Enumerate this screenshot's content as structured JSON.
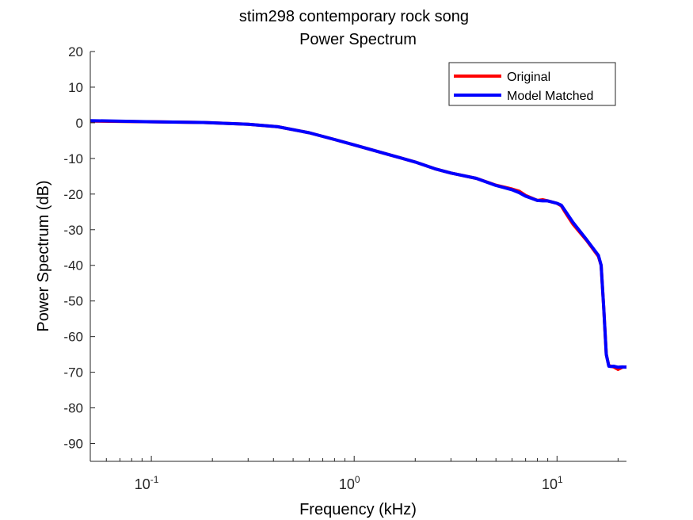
{
  "chart_data": {
    "type": "line",
    "title_line1": "stim298 contemporary rock song",
    "title_line2": "Power Spectrum",
    "xlabel": "Frequency (kHz)",
    "ylabel": "Power Spectrum (dB)",
    "xscale": "log",
    "xlim": [
      0.05,
      22
    ],
    "ylim": [
      -95,
      20
    ],
    "yticks": [
      20,
      10,
      0,
      -10,
      -20,
      -30,
      -40,
      -50,
      -60,
      -70,
      -80,
      -90
    ],
    "xticks": [
      {
        "value": 0.1,
        "base": "10",
        "exp": "-1"
      },
      {
        "value": 1,
        "base": "10",
        "exp": "0"
      },
      {
        "value": 10,
        "base": "10",
        "exp": "1"
      }
    ],
    "legend_position": "top-right",
    "series": [
      {
        "name": "Original",
        "color": "#ff0000",
        "x": [
          0.05,
          0.1,
          0.18,
          0.3,
          0.42,
          0.6,
          0.8,
          1.0,
          1.5,
          2.0,
          2.5,
          3.0,
          4.0,
          5.0,
          6.0,
          6.5,
          7.0,
          8.0,
          8.5,
          9.0,
          10.0,
          10.5,
          11.0,
          12.0,
          14.0,
          16.0,
          16.5,
          17.0,
          17.5,
          18.0,
          18.5,
          19.0,
          20.0,
          21.0,
          22.0
        ],
        "y": [
          0.5,
          0.3,
          0.1,
          -0.4,
          -1.1,
          -2.8,
          -4.7,
          -6.2,
          -9.0,
          -11.0,
          -12.9,
          -14.1,
          -15.6,
          -17.5,
          -18.6,
          -19.2,
          -20.4,
          -21.8,
          -21.6,
          -21.9,
          -22.6,
          -23.3,
          -25.2,
          -28.5,
          -33.0,
          -37.5,
          -40.0,
          -52.0,
          -65.0,
          -68.2,
          -68.3,
          -68.5,
          -69.2,
          -68.6,
          -68.5
        ]
      },
      {
        "name": "Model Matched",
        "color": "#0000ff",
        "x": [
          0.05,
          0.1,
          0.18,
          0.3,
          0.42,
          0.6,
          0.8,
          1.0,
          1.5,
          2.0,
          2.5,
          3.0,
          4.0,
          5.0,
          6.0,
          6.5,
          7.0,
          8.0,
          8.5,
          9.0,
          10.0,
          10.5,
          11.0,
          12.0,
          14.0,
          16.0,
          16.5,
          17.0,
          17.5,
          18.0,
          18.5,
          19.0,
          20.0,
          21.0,
          22.0
        ],
        "y": [
          0.6,
          0.3,
          0.1,
          -0.4,
          -1.1,
          -2.8,
          -4.7,
          -6.2,
          -9.0,
          -11.0,
          -12.9,
          -14.1,
          -15.6,
          -17.6,
          -18.8,
          -19.6,
          -20.6,
          -21.8,
          -21.9,
          -21.9,
          -22.6,
          -23.1,
          -24.8,
          -28.0,
          -32.8,
          -37.2,
          -40.0,
          -52.0,
          -65.0,
          -68.3,
          -68.4,
          -68.3,
          -68.6,
          -68.5,
          -68.6
        ]
      }
    ]
  }
}
